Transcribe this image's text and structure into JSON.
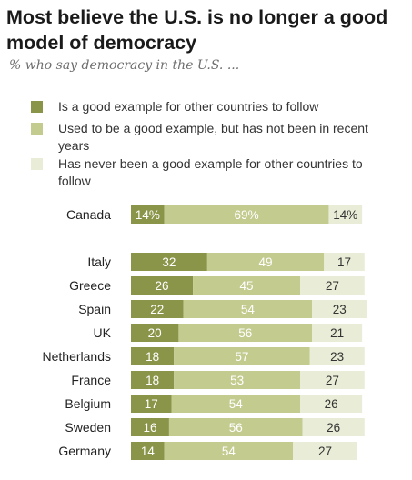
{
  "title": "Most believe the U.S. is no longer a good model of democracy",
  "subtitle": "% who say democracy in the U.S. ...",
  "colors": {
    "good": "#8a9549",
    "used_to_be": "#c3cb8f",
    "never": "#e9ecd6"
  },
  "legend": [
    {
      "label": "Is a good example for other countries to follow",
      "color": "#8a9549"
    },
    {
      "label": "Used to be a good example, but has not been in recent years",
      "color": "#c3cb8f"
    },
    {
      "label": "Has never been a good example for other countries to follow",
      "color": "#e9ecd6"
    }
  ],
  "chart_data": {
    "type": "bar",
    "orientation": "horizontal",
    "stacked": true,
    "categories": [
      "Canada",
      "Italy",
      "Greece",
      "Spain",
      "UK",
      "Netherlands",
      "France",
      "Belgium",
      "Sweden",
      "Germany"
    ],
    "series": [
      {
        "name": "Is a good example for other countries to follow",
        "values": [
          14,
          32,
          26,
          22,
          20,
          18,
          18,
          17,
          16,
          14
        ]
      },
      {
        "name": "Used to be a good example, but has not been in recent years",
        "values": [
          69,
          49,
          45,
          54,
          56,
          57,
          53,
          54,
          56,
          54
        ]
      },
      {
        "name": "Has never been a good example for other countries to follow",
        "values": [
          14,
          17,
          27,
          23,
          21,
          23,
          27,
          26,
          26,
          27
        ]
      }
    ],
    "value_labels": [
      [
        "14%",
        "69%",
        "14%"
      ],
      [
        "32",
        "49",
        "17"
      ],
      [
        "26",
        "45",
        "27"
      ],
      [
        "22",
        "54",
        "23"
      ],
      [
        "20",
        "56",
        "21"
      ],
      [
        "18",
        "57",
        "23"
      ],
      [
        "18",
        "53",
        "27"
      ],
      [
        "17",
        "54",
        "26"
      ],
      [
        "16",
        "56",
        "26"
      ],
      [
        "14",
        "54",
        "27"
      ]
    ],
    "legend_position": "top",
    "grid": false
  }
}
